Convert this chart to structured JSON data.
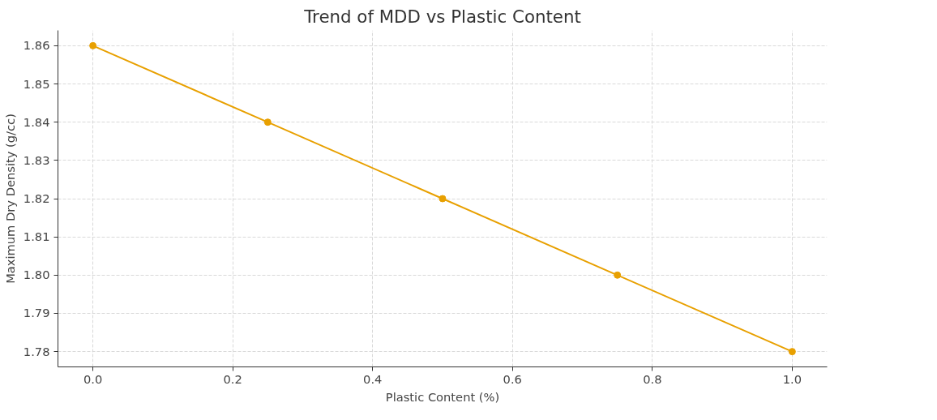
{
  "chart_data": {
    "type": "line",
    "title": "Trend of MDD vs Plastic Content",
    "xlabel": "Plastic Content (%)",
    "ylabel": "Maximum Dry Density (g/cc)",
    "x": [
      0.0,
      0.25,
      0.5,
      0.75,
      1.0
    ],
    "series": [
      {
        "color": "#e8a000",
        "values": [
          1.86,
          1.84,
          1.82,
          1.8,
          1.78
        ]
      }
    ],
    "xlim": [
      -0.05,
      1.05
    ],
    "ylim": [
      1.776,
      1.864
    ],
    "xticks": [
      {
        "value": 0,
        "label": "0.0"
      },
      0.2,
      0.4,
      0.6,
      0.8,
      {
        "value": 1,
        "label": "1.0"
      }
    ],
    "yticks": [
      1.78,
      1.79,
      {
        "value": 1.8,
        "label": "1.80"
      },
      1.81,
      1.82,
      1.83,
      1.84,
      1.85,
      1.86
    ],
    "grid": true,
    "marker": "circle",
    "line_style": "solid"
  }
}
